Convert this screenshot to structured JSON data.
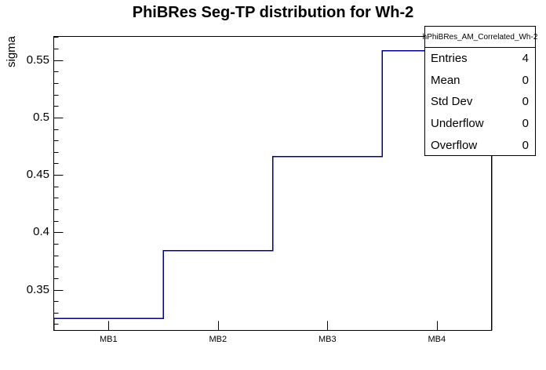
{
  "title": "PhiBRes Seg-TP distribution for Wh-2",
  "stats_box": {
    "header": "hPhiBRes_AM_Correlated_Wh-2",
    "rows": [
      {
        "label": "Entries",
        "value": "4"
      },
      {
        "label": "Mean",
        "value": "0"
      },
      {
        "label": "Std Dev",
        "value": "0"
      },
      {
        "label": "Underflow",
        "value": "0"
      },
      {
        "label": "Overflow",
        "value": "0"
      }
    ]
  },
  "chart_data": {
    "type": "step",
    "title": "PhiBRes Seg-TP distribution for Wh-2",
    "xlabel": "",
    "ylabel": "sigma",
    "categories": [
      "MB1",
      "MB2",
      "MB3",
      "MB4"
    ],
    "values": [
      0.325,
      0.384,
      0.466,
      0.558
    ],
    "ylim": [
      0.3145,
      0.5706
    ],
    "y_ticks": [
      {
        "value": 0.35,
        "label": "0.35"
      },
      {
        "value": 0.4,
        "label": "0.4"
      },
      {
        "value": 0.45,
        "label": "0.45"
      },
      {
        "value": 0.5,
        "label": "0.5"
      },
      {
        "value": 0.55,
        "label": "0.55"
      }
    ],
    "minor_tick_step": 0.01,
    "grid": false,
    "legend_position": "none",
    "line_color": "#000080",
    "frame_color": "#000000",
    "background_color": "#ffffff"
  }
}
